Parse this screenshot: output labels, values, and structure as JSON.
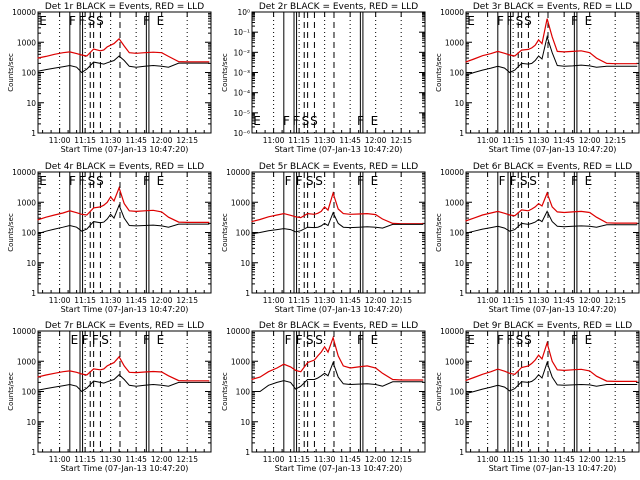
{
  "figure": {
    "start_time_label": "Start Time (07-Jan-13 10:47:20)",
    "ylabel": "Counts/sec",
    "title_suffix": " BLACK = Events, RED = LLD",
    "x_ticks": [
      "11:00",
      "11:15",
      "11:30",
      "11:45",
      "12:00",
      "12:15"
    ],
    "x_tick_minutes": [
      60,
      75,
      90,
      105,
      120,
      135
    ],
    "xlim_minutes": [
      47.3,
      149
    ],
    "log_ylim": [
      1,
      10000
    ],
    "y_ticks_log": [
      "1",
      "10",
      "100",
      "1000",
      "10000"
    ],
    "y_ticks_small": [
      "10⁻⁶",
      "10⁻⁵",
      "10⁻⁴",
      "10⁻³",
      "10⁻²",
      "10⁻¹",
      "10⁰"
    ],
    "colors": {
      "events": "#000000",
      "lld": "#dd0000",
      "axes": "#000000"
    }
  },
  "chart_data": [
    {
      "type": "line",
      "title": "Det 1r BLACK = Events, RED = LLD",
      "xlabel": "Start Time (07-Jan-13 10:47:20)",
      "ylabel": "Counts/sec",
      "yscale": "log",
      "ylim": [
        1,
        10000
      ],
      "flags": [
        "E",
        "F",
        "F",
        "S",
        "S",
        "F",
        "E"
      ],
      "x": [
        47,
        52,
        57,
        62,
        66,
        70,
        73,
        76,
        80,
        84,
        86,
        88,
        90,
        92,
        95,
        98,
        101,
        105,
        110,
        115,
        120,
        124,
        130,
        135,
        140,
        145,
        148
      ],
      "series": [
        {
          "name": "RED = LLD",
          "values": [
            300,
            340,
            400,
            450,
            480,
            420,
            380,
            350,
            600,
            520,
            560,
            700,
            800,
            900,
            1300,
            750,
            450,
            430,
            450,
            470,
            450,
            340,
            230,
            225,
            225,
            225,
            225
          ]
        },
        {
          "name": "BLACK = Events",
          "values": [
            110,
            125,
            140,
            155,
            170,
            150,
            100,
            130,
            220,
            200,
            190,
            210,
            230,
            250,
            350,
            250,
            160,
            150,
            160,
            170,
            160,
            150,
            205,
            205,
            205,
            205,
            205
          ]
        }
      ]
    },
    {
      "type": "line",
      "title": "Det 2r BLACK = Events, RED = LLD",
      "xlabel": "Start Time (07-Jan-13 10:47:20)",
      "ylabel": "Counts/sec",
      "yscale": "log",
      "ylim": [
        1e-06,
        1
      ],
      "flags": [
        "E",
        "F",
        "F",
        "S",
        "S",
        "F",
        "E"
      ],
      "x": [],
      "series": []
    },
    {
      "type": "line",
      "title": "Det 3r BLACK = Events, RED = LLD",
      "xlabel": "Start Time (07-Jan-13 10:47:20)",
      "ylabel": "Counts/sec",
      "yscale": "log",
      "ylim": [
        1,
        10000
      ],
      "flags": [
        "E",
        "F",
        "F",
        "S",
        "S",
        "F",
        "E"
      ],
      "x": [
        47,
        52,
        57,
        62,
        66,
        70,
        73,
        76,
        80,
        84,
        86,
        88,
        90,
        92,
        95,
        98,
        101,
        105,
        110,
        115,
        120,
        124,
        130,
        135,
        140,
        145,
        148
      ],
      "series": [
        {
          "name": "RED = LLD",
          "values": [
            220,
            280,
            360,
            420,
            500,
            430,
            380,
            350,
            550,
            580,
            650,
            800,
            1200,
            900,
            6000,
            1500,
            500,
            480,
            500,
            520,
            450,
            300,
            200,
            195,
            195,
            195,
            195
          ]
        },
        {
          "name": "BLACK = Events",
          "values": [
            80,
            100,
            120,
            140,
            160,
            140,
            100,
            120,
            200,
            190,
            200,
            250,
            350,
            280,
            1500,
            450,
            170,
            160,
            165,
            175,
            165,
            150,
            160,
            160,
            160,
            160,
            160
          ]
        }
      ]
    },
    {
      "type": "line",
      "title": "Det 4r BLACK = Events, RED = LLD",
      "xlabel": "Start Time (07-Jan-13 10:47:20)",
      "ylabel": "Counts/sec",
      "yscale": "log",
      "ylim": [
        1,
        10000
      ],
      "flags": [
        "E",
        "F",
        "F",
        "S",
        "S",
        "F",
        "E"
      ],
      "x": [
        47,
        52,
        57,
        62,
        66,
        70,
        73,
        76,
        80,
        84,
        86,
        88,
        90,
        92,
        95,
        98,
        101,
        105,
        110,
        115,
        120,
        124,
        130,
        135,
        140,
        145,
        148
      ],
      "series": [
        {
          "name": "RED = LLD",
          "values": [
            260,
            320,
            380,
            440,
            520,
            450,
            400,
            380,
            650,
            700,
            800,
            1000,
            1500,
            1100,
            3000,
            900,
            520,
            500,
            520,
            540,
            480,
            320,
            220,
            215,
            215,
            215,
            215
          ]
        },
        {
          "name": "BLACK = Events",
          "values": [
            90,
            110,
            130,
            150,
            170,
            150,
            110,
            130,
            230,
            210,
            220,
            280,
            400,
            300,
            800,
            300,
            170,
            165,
            170,
            175,
            165,
            150,
            190,
            190,
            190,
            190,
            190
          ]
        }
      ]
    },
    {
      "type": "line",
      "title": "Det 5r BLACK = Events, RED = LLD",
      "xlabel": "Start Time (07-Jan-13 10:47:20)",
      "ylabel": "Counts/sec",
      "yscale": "log",
      "ylim": [
        1,
        10000
      ],
      "flags": [
        "F",
        "F",
        "S",
        "S",
        "F",
        "E"
      ],
      "x": [
        47,
        52,
        57,
        62,
        66,
        70,
        73,
        76,
        80,
        84,
        86,
        88,
        90,
        92,
        95,
        98,
        101,
        105,
        110,
        115,
        120,
        124,
        130,
        135,
        140,
        145,
        148
      ],
      "series": [
        {
          "name": "RED = LLD",
          "values": [
            230,
            270,
            330,
            380,
            420,
            370,
            330,
            310,
            420,
            400,
            430,
            500,
            700,
            550,
            2000,
            600,
            420,
            400,
            410,
            420,
            390,
            280,
            200,
            195,
            195,
            195,
            195
          ]
        },
        {
          "name": "BLACK = Events",
          "values": [
            90,
            100,
            115,
            125,
            135,
            125,
            105,
            115,
            150,
            145,
            150,
            165,
            200,
            170,
            450,
            200,
            150,
            145,
            150,
            155,
            150,
            140,
            185,
            185,
            185,
            185,
            185
          ]
        }
      ]
    },
    {
      "type": "line",
      "title": "Det 6r BLACK = Events, RED = LLD",
      "xlabel": "Start Time (07-Jan-13 10:47:20)",
      "ylabel": "Counts/sec",
      "yscale": "log",
      "ylim": [
        1,
        10000
      ],
      "flags": [
        "F",
        "F",
        "S",
        "S",
        "F",
        "E"
      ],
      "x": [
        47,
        52,
        57,
        62,
        66,
        70,
        73,
        76,
        80,
        84,
        86,
        88,
        90,
        92,
        95,
        98,
        101,
        105,
        110,
        115,
        120,
        124,
        130,
        135,
        140,
        145,
        148
      ],
      "series": [
        {
          "name": "RED = LLD",
          "values": [
            240,
            300,
            380,
            440,
            500,
            430,
            380,
            360,
            560,
            520,
            600,
            700,
            900,
            750,
            2000,
            700,
            480,
            460,
            480,
            500,
            460,
            320,
            210,
            205,
            205,
            205,
            205
          ]
        },
        {
          "name": "BLACK = Events",
          "values": [
            95,
            110,
            130,
            145,
            160,
            140,
            110,
            125,
            200,
            185,
            200,
            220,
            270,
            230,
            500,
            230,
            160,
            155,
            160,
            165,
            160,
            150,
            180,
            180,
            180,
            180,
            180
          ]
        }
      ]
    },
    {
      "type": "line",
      "title": "Det 7r BLACK = Events, RED = LLD",
      "xlabel": "Start Time (07-Jan-13 10:47:20)",
      "ylabel": "Counts/sec",
      "yscale": "log",
      "ylim": [
        1,
        10000
      ],
      "flags": [
        "E",
        "F",
        "F",
        "S",
        "F",
        "E"
      ],
      "x": [
        47,
        52,
        57,
        62,
        66,
        70,
        73,
        76,
        80,
        84,
        86,
        88,
        90,
        92,
        95,
        98,
        101,
        105,
        110,
        115,
        120,
        124,
        130,
        135,
        140,
        145,
        148
      ],
      "series": [
        {
          "name": "RED = LLD",
          "values": [
            300,
            350,
            400,
            450,
            480,
            430,
            380,
            350,
            560,
            520,
            560,
            700,
            800,
            900,
            1400,
            700,
            430,
            420,
            440,
            460,
            440,
            330,
            230,
            225,
            225,
            225,
            225
          ]
        },
        {
          "name": "BLACK = Events",
          "values": [
            110,
            125,
            140,
            155,
            170,
            150,
            100,
            130,
            220,
            200,
            190,
            210,
            230,
            250,
            360,
            250,
            160,
            150,
            160,
            170,
            160,
            150,
            200,
            200,
            200,
            200,
            200
          ]
        }
      ]
    },
    {
      "type": "line",
      "title": "Det 8r BLACK = Events, RED = LLD",
      "xlabel": "Start Time (07-Jan-13 10:47:20)",
      "ylabel": "Counts/sec",
      "yscale": "log",
      "ylim": [
        1,
        10000
      ],
      "flags": [
        "F",
        "F",
        "S",
        "S",
        "F",
        "E"
      ],
      "x": [
        47,
        52,
        57,
        62,
        66,
        70,
        73,
        76,
        80,
        84,
        86,
        88,
        90,
        92,
        95,
        98,
        101,
        105,
        110,
        115,
        120,
        124,
        130,
        135,
        140,
        145,
        148
      ],
      "series": [
        {
          "name": "RED = LLD",
          "values": [
            250,
            300,
            450,
            600,
            800,
            650,
            500,
            450,
            900,
            1100,
            1500,
            2000,
            3000,
            2000,
            6000,
            1500,
            700,
            600,
            650,
            700,
            600,
            400,
            250,
            240,
            240,
            240,
            240
          ]
        },
        {
          "name": "BLACK = Events",
          "values": [
            100,
            100,
            160,
            200,
            230,
            200,
            120,
            150,
            250,
            250,
            280,
            330,
            400,
            330,
            900,
            300,
            180,
            170,
            175,
            180,
            170,
            150,
            210,
            210,
            210,
            210,
            210
          ]
        }
      ]
    },
    {
      "type": "line",
      "title": "Det 9r BLACK = Events, RED = LLD",
      "xlabel": "Start Time (07-Jan-13 10:47:20)",
      "ylabel": "Counts/sec",
      "yscale": "log",
      "ylim": [
        1,
        10000
      ],
      "flags": [
        "E",
        "F",
        "F",
        "S",
        "S",
        "F",
        "E"
      ],
      "x": [
        47,
        52,
        57,
        62,
        66,
        70,
        73,
        76,
        80,
        84,
        86,
        88,
        90,
        92,
        95,
        98,
        101,
        105,
        110,
        115,
        120,
        124,
        130,
        135,
        140,
        145,
        148
      ],
      "series": [
        {
          "name": "RED = LLD",
          "values": [
            230,
            290,
            370,
            450,
            550,
            470,
            400,
            370,
            620,
            700,
            850,
            1100,
            1600,
            1200,
            4000,
            1000,
            520,
            500,
            520,
            540,
            480,
            320,
            220,
            215,
            215,
            215,
            215
          ]
        },
        {
          "name": "BLACK = Events",
          "values": [
            85,
            100,
            120,
            140,
            160,
            140,
            105,
            125,
            210,
            200,
            215,
            260,
            360,
            280,
            900,
            300,
            165,
            160,
            165,
            170,
            165,
            150,
            170,
            170,
            170,
            170,
            170
          ]
        }
      ]
    }
  ]
}
